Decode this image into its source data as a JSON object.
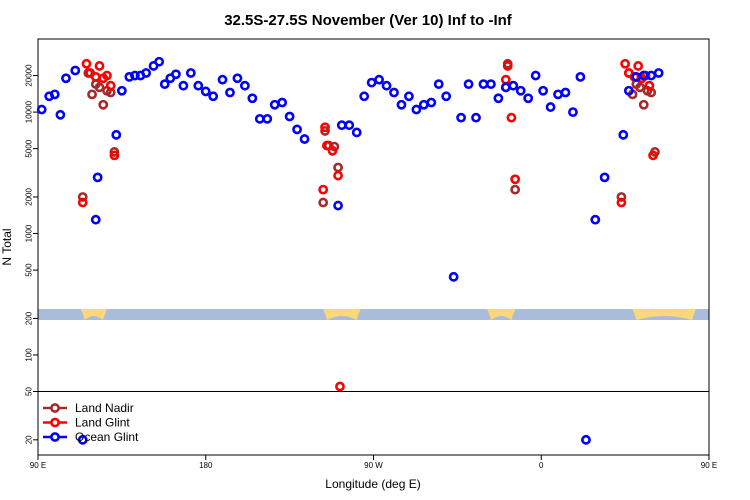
{
  "chart_data": {
    "type": "scatter",
    "title": "32.5S-27.5S November (Ver 10)   Inf to -Inf",
    "xlabel": "Longitude (deg E)",
    "ylabel": "N Total",
    "log_scale_y": true,
    "xlim": [
      90,
      450
    ],
    "ylim": [
      15,
      40000
    ],
    "x_ticks": [
      {
        "value": 90,
        "label": "90 E"
      },
      {
        "value": 180,
        "label": "180"
      },
      {
        "value": 270,
        "label": "90 W"
      },
      {
        "value": 360,
        "label": "0"
      },
      {
        "value": 450,
        "label": "90 E"
      },
      {
        "value": 540,
        "label": "180"
      }
    ],
    "y_ticks": [
      {
        "value": 20,
        "label": "20"
      },
      {
        "value": 50,
        "label": "50"
      },
      {
        "value": 100,
        "label": "100"
      },
      {
        "value": 200,
        "label": "200"
      },
      {
        "value": 500,
        "label": "500"
      },
      {
        "value": 1000,
        "label": "1000"
      },
      {
        "value": 2000,
        "label": "2000"
      },
      {
        "value": 5000,
        "label": "5000"
      },
      {
        "value": 10000,
        "label": "10000"
      },
      {
        "value": 20000,
        "label": "20000"
      }
    ],
    "reference_line_y": 50,
    "colors": {
      "land_nadir": "#a52a2a",
      "land_glint": "#ff0000",
      "ocean_glint": "#0000ff",
      "ocean_band": "#a9bcd9",
      "land_band": "#fcd87a"
    },
    "legend": {
      "position": "bottom-left",
      "entries": [
        {
          "name": "Land Nadir",
          "color": "#a52a2a"
        },
        {
          "name": "Land Glint",
          "color": "#ff0000"
        },
        {
          "name": "Ocean Glint",
          "color": "#0000ff"
        }
      ]
    },
    "land_segments": [
      [
        113,
        127
      ],
      [
        243,
        263
      ],
      [
        331,
        346
      ],
      [
        409,
        443
      ]
    ],
    "series": [
      {
        "name": "Land Nadir",
        "points": [
          [
            114,
            2000
          ],
          [
            117,
            21000
          ],
          [
            119,
            14000
          ],
          [
            121,
            17000
          ],
          [
            123,
            16000
          ],
          [
            125,
            11500
          ],
          [
            127,
            15000
          ],
          [
            129,
            14500
          ],
          [
            131,
            4700
          ],
          [
            243,
            1800
          ],
          [
            244,
            7000
          ],
          [
            246,
            5300
          ],
          [
            249,
            5200
          ],
          [
            251,
            3500
          ],
          [
            341,
            16000
          ],
          [
            342,
            25000
          ],
          [
            346,
            2300
          ],
          [
            403,
            2000
          ],
          [
            407,
            21000
          ],
          [
            409,
            14000
          ],
          [
            411,
            17000
          ],
          [
            413,
            16000
          ],
          [
            415,
            11500
          ],
          [
            417,
            15000
          ],
          [
            419,
            14500
          ],
          [
            421,
            4700
          ]
        ]
      },
      {
        "name": "Land Glint",
        "points": [
          [
            114,
            1800
          ],
          [
            116,
            25000
          ],
          [
            118,
            21000
          ],
          [
            121,
            19500
          ],
          [
            123,
            24000
          ],
          [
            125,
            19000
          ],
          [
            127,
            20000
          ],
          [
            129,
            16500
          ],
          [
            131,
            4400
          ],
          [
            243,
            2300
          ],
          [
            244,
            7500
          ],
          [
            245,
            5300
          ],
          [
            248,
            4800
          ],
          [
            251,
            3000
          ],
          [
            252,
            55
          ],
          [
            341,
            18500
          ],
          [
            342,
            24000
          ],
          [
            344,
            9000
          ],
          [
            346,
            2800
          ],
          [
            403,
            1800
          ],
          [
            405,
            25000
          ],
          [
            407,
            21000
          ],
          [
            410,
            19500
          ],
          [
            412,
            24000
          ],
          [
            414,
            19000
          ],
          [
            416,
            20000
          ],
          [
            418,
            16500
          ],
          [
            420,
            4400
          ]
        ]
      },
      {
        "name": "Ocean Glint",
        "points": [
          [
            92,
            10500
          ],
          [
            96,
            13500
          ],
          [
            99,
            14000
          ],
          [
            102,
            9500
          ],
          [
            105,
            19000
          ],
          [
            110,
            22000
          ],
          [
            114,
            20
          ],
          [
            121,
            1300
          ],
          [
            122,
            2900
          ],
          [
            132,
            6500
          ],
          [
            135,
            15000
          ],
          [
            139,
            19500
          ],
          [
            142,
            20000
          ],
          [
            145,
            20000
          ],
          [
            148,
            21000
          ],
          [
            152,
            24000
          ],
          [
            155,
            26000
          ],
          [
            158,
            17000
          ],
          [
            161,
            19000
          ],
          [
            164,
            20500
          ],
          [
            168,
            16500
          ],
          [
            172,
            21000
          ],
          [
            176,
            16500
          ],
          [
            180,
            14800
          ],
          [
            184,
            13500
          ],
          [
            189,
            18500
          ],
          [
            193,
            14500
          ],
          [
            197,
            19000
          ],
          [
            201,
            16500
          ],
          [
            205,
            13000
          ],
          [
            209,
            8800
          ],
          [
            213,
            8800
          ],
          [
            217,
            11500
          ],
          [
            221,
            12000
          ],
          [
            225,
            9200
          ],
          [
            229,
            7200
          ],
          [
            233,
            6000
          ],
          [
            251,
            1700
          ],
          [
            253,
            7800
          ],
          [
            257,
            7800
          ],
          [
            261,
            6800
          ],
          [
            265,
            13500
          ],
          [
            269,
            17500
          ],
          [
            273,
            18500
          ],
          [
            277,
            16500
          ],
          [
            281,
            14500
          ],
          [
            285,
            11500
          ],
          [
            289,
            13500
          ],
          [
            293,
            10500
          ],
          [
            297,
            11500
          ],
          [
            301,
            12000
          ],
          [
            305,
            17000
          ],
          [
            309,
            13500
          ],
          [
            313,
            440
          ],
          [
            317,
            9000
          ],
          [
            321,
            17000
          ],
          [
            325,
            9000
          ],
          [
            329,
            17000
          ],
          [
            333,
            17000
          ],
          [
            337,
            13000
          ],
          [
            341,
            16000
          ],
          [
            345,
            16500
          ],
          [
            349,
            15000
          ],
          [
            353,
            13000
          ],
          [
            357,
            20000
          ],
          [
            361,
            15000
          ],
          [
            365,
            11000
          ],
          [
            369,
            14000
          ],
          [
            373,
            14500
          ],
          [
            377,
            10000
          ],
          [
            381,
            19500
          ],
          [
            384,
            20
          ],
          [
            389,
            1300
          ],
          [
            394,
            2900
          ],
          [
            404,
            6500
          ],
          [
            407,
            15000
          ],
          [
            411,
            19500
          ],
          [
            415,
            20000
          ],
          [
            419,
            20000
          ],
          [
            423,
            21000
          ]
        ]
      }
    ]
  }
}
